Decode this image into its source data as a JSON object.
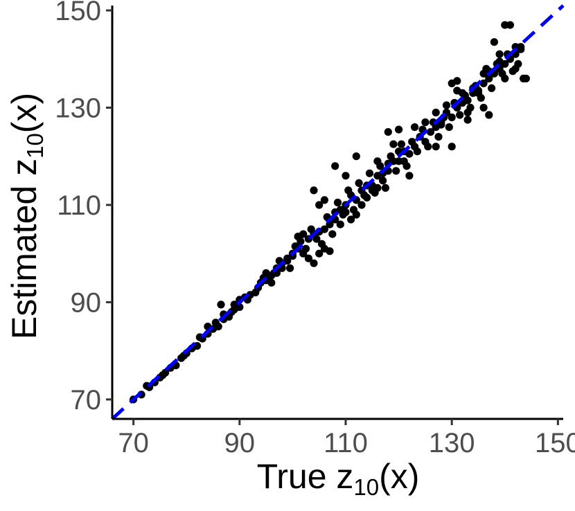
{
  "chart_data": {
    "type": "scatter",
    "title": "",
    "xlabel": {
      "main": "True z",
      "sub": "10",
      "suffix": "(x)"
    },
    "ylabel": {
      "main": "Estimated z",
      "sub": "10",
      "suffix": "(x)"
    },
    "xlim": [
      66,
      151
    ],
    "ylim": [
      66,
      151
    ],
    "x_ticks": [
      70,
      90,
      110,
      130,
      150
    ],
    "y_ticks": [
      70,
      90,
      110,
      130,
      150
    ],
    "x_tick_labels": [
      "70",
      "90",
      "110",
      "130",
      "150"
    ],
    "y_tick_labels": [
      "70",
      "90",
      "110",
      "130",
      "150"
    ],
    "grid": false,
    "reference_line": {
      "kind": "identity y=x",
      "style": "dashed",
      "color": "#0000ff"
    },
    "point_color": "#000000",
    "series": [
      {
        "points": [
          [
            70,
            70
          ],
          [
            71.5,
            71
          ],
          [
            73,
            72.5
          ],
          [
            74,
            73.5
          ],
          [
            75,
            74.5
          ],
          [
            76,
            75.5
          ],
          [
            77,
            76.5
          ],
          [
            78,
            77
          ],
          [
            79,
            78.5
          ],
          [
            80,
            79.5
          ],
          [
            81,
            80.5
          ],
          [
            82,
            81
          ],
          [
            83,
            82.5
          ],
          [
            84,
            83.5
          ],
          [
            85,
            84.5
          ],
          [
            86,
            85
          ],
          [
            87,
            86.5
          ],
          [
            88,
            87
          ],
          [
            89,
            88.5
          ],
          [
            90,
            89
          ],
          [
            91,
            91
          ],
          [
            92,
            91.5
          ],
          [
            93,
            92
          ],
          [
            94,
            94
          ],
          [
            95,
            94.5
          ],
          [
            96,
            95.5
          ],
          [
            97,
            97
          ],
          [
            98,
            98
          ],
          [
            99,
            98.5
          ],
          [
            100,
            99.5
          ],
          [
            101,
            101
          ],
          [
            102,
            100
          ],
          [
            103,
            103
          ],
          [
            104,
            104
          ],
          [
            105,
            104.5
          ],
          [
            106,
            105
          ],
          [
            107,
            106
          ],
          [
            108,
            107
          ],
          [
            109,
            109
          ],
          [
            110,
            110
          ],
          [
            111,
            112
          ],
          [
            112,
            111
          ],
          [
            113,
            113
          ],
          [
            114,
            114
          ],
          [
            115,
            114
          ],
          [
            116,
            116
          ],
          [
            117,
            115
          ],
          [
            118,
            117
          ],
          [
            119,
            119
          ],
          [
            120,
            119
          ],
          [
            121,
            121
          ],
          [
            122,
            120.5
          ],
          [
            123,
            122
          ],
          [
            124,
            124
          ],
          [
            125,
            123
          ],
          [
            126,
            125
          ],
          [
            127,
            126
          ],
          [
            128,
            127
          ],
          [
            129,
            129
          ],
          [
            130,
            128
          ],
          [
            131,
            130
          ],
          [
            132,
            131
          ],
          [
            133,
            131.5
          ],
          [
            134,
            133
          ],
          [
            135,
            133
          ],
          [
            136,
            135
          ],
          [
            137,
            136
          ],
          [
            138,
            137
          ],
          [
            139,
            138
          ],
          [
            140,
            139
          ],
          [
            141,
            140
          ],
          [
            142,
            141
          ],
          [
            143,
            142
          ],
          [
            72.5,
            72.8
          ],
          [
            75.5,
            75
          ],
          [
            79.5,
            79
          ],
          [
            82.5,
            82.8
          ],
          [
            85.5,
            85.8
          ],
          [
            86.5,
            89.5
          ],
          [
            88.5,
            88
          ],
          [
            91.5,
            90.5
          ],
          [
            93.5,
            93
          ],
          [
            94.5,
            95
          ],
          [
            96.5,
            96
          ],
          [
            97.5,
            98.5
          ],
          [
            99.5,
            97
          ],
          [
            100.5,
            101.5
          ],
          [
            101.5,
            102.5
          ],
          [
            102.5,
            101
          ],
          [
            103.5,
            105
          ],
          [
            104.5,
            103
          ],
          [
            105.5,
            102
          ],
          [
            106.5,
            107.5
          ],
          [
            107.5,
            104
          ],
          [
            108.5,
            110.5
          ],
          [
            109.5,
            108
          ],
          [
            110.5,
            113
          ],
          [
            111.5,
            109
          ],
          [
            112.5,
            114.5
          ],
          [
            113.5,
            112
          ],
          [
            114.5,
            116.5
          ],
          [
            115.5,
            112.5
          ],
          [
            116.5,
            118
          ],
          [
            117.5,
            113.5
          ],
          [
            118.5,
            120
          ],
          [
            119.5,
            117
          ],
          [
            120.5,
            122.5
          ],
          [
            121.5,
            118
          ],
          [
            122.5,
            123
          ],
          [
            123.5,
            121
          ],
          [
            124.5,
            125.5
          ],
          [
            125.5,
            122
          ],
          [
            126.5,
            127
          ],
          [
            127.5,
            124
          ],
          [
            128.5,
            128
          ],
          [
            129.5,
            126
          ],
          [
            130.5,
            131
          ],
          [
            131.5,
            128.5
          ],
          [
            132.5,
            132.5
          ],
          [
            133.5,
            130
          ],
          [
            134.5,
            134.5
          ],
          [
            135.5,
            132
          ],
          [
            136.5,
            138
          ],
          [
            137.5,
            134
          ],
          [
            138.5,
            139
          ],
          [
            139.5,
            137
          ],
          [
            140.5,
            141
          ],
          [
            141.5,
            137.5
          ],
          [
            142.5,
            139
          ],
          [
            143.5,
            136
          ],
          [
            104,
            113
          ],
          [
            105,
            110
          ],
          [
            106,
            111
          ],
          [
            108,
            118
          ],
          [
            110,
            116
          ],
          [
            112,
            120
          ],
          [
            116,
            119
          ],
          [
            118,
            125
          ],
          [
            120,
            125.5
          ],
          [
            121,
            119
          ],
          [
            122,
            116
          ],
          [
            123,
            126
          ],
          [
            125,
            127
          ],
          [
            127,
            129
          ],
          [
            128,
            126.5
          ],
          [
            130,
            135
          ],
          [
            131,
            135.5
          ],
          [
            132,
            133
          ],
          [
            134,
            134
          ],
          [
            136,
            130
          ],
          [
            138,
            143.5
          ],
          [
            139,
            141
          ],
          [
            140,
            147
          ],
          [
            141,
            147
          ],
          [
            142,
            142.5
          ],
          [
            143,
            142.5
          ],
          [
            144,
            136
          ],
          [
            137,
            128.5
          ],
          [
            133,
            129
          ],
          [
            130,
            122
          ],
          [
            101,
            103.5
          ],
          [
            102,
            104
          ],
          [
            103,
            99
          ],
          [
            104,
            98
          ],
          [
            105,
            100
          ],
          [
            106,
            101
          ],
          [
            107,
            100.5
          ],
          [
            108,
            108.5
          ],
          [
            109,
            106
          ],
          [
            110,
            108.5
          ],
          [
            111,
            107
          ],
          [
            112,
            108
          ],
          [
            113,
            110
          ],
          [
            114,
            111.5
          ],
          [
            115,
            113
          ],
          [
            116,
            113.5
          ],
          [
            117,
            116.5
          ],
          [
            118,
            118.5
          ],
          [
            119,
            122.5
          ],
          [
            120,
            121
          ],
          [
            95,
            96
          ],
          [
            96,
            94
          ],
          [
            97,
            96
          ],
          [
            98,
            97
          ],
          [
            99,
            99
          ],
          [
            100,
            100
          ],
          [
            89,
            89.5
          ],
          [
            90,
            90.5
          ],
          [
            87,
            87.5
          ],
          [
            84,
            85
          ],
          [
            127,
            122
          ],
          [
            129,
            130.5
          ],
          [
            131,
            133.5
          ],
          [
            133,
            127.5
          ],
          [
            135,
            133.5
          ],
          [
            136,
            137
          ],
          [
            137,
            137.5
          ],
          [
            139,
            139.5
          ],
          [
            140,
            136
          ],
          [
            142,
            138
          ]
        ]
      }
    ]
  }
}
